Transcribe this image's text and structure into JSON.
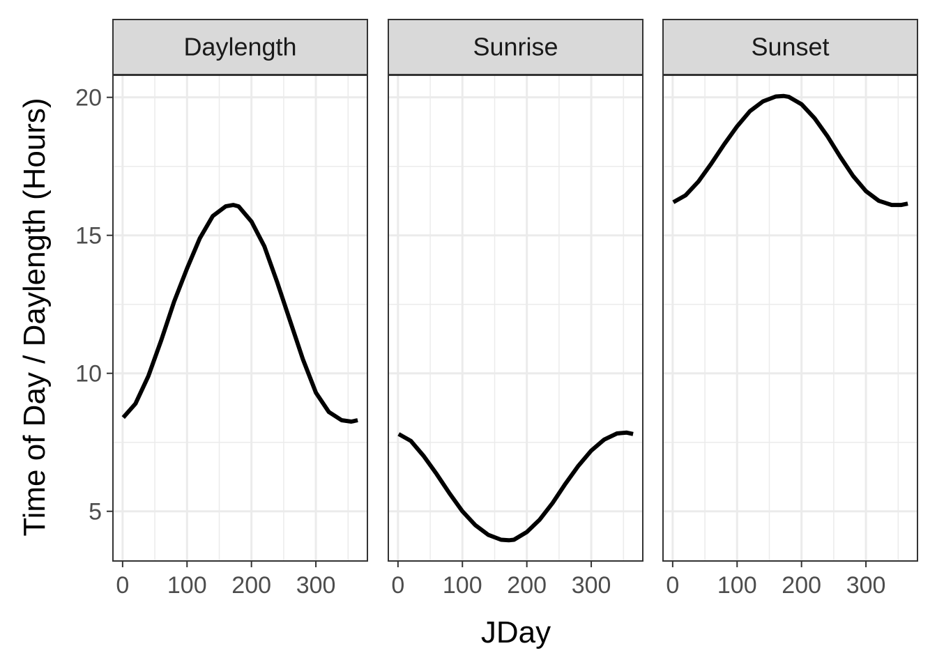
{
  "chart_data": {
    "type": "line",
    "facet_by": "panel",
    "xlabel": "JDay",
    "ylabel": "Time of Day / Daylength (Hours)",
    "xlim": [
      -15,
      380
    ],
    "ylim": [
      3.2,
      20.8
    ],
    "x_ticks": [
      0,
      100,
      200,
      300
    ],
    "y_ticks": [
      5,
      10,
      15,
      20
    ],
    "x_tick_labels": [
      "0",
      "100",
      "200",
      "300"
    ],
    "y_tick_labels": [
      "5",
      "10",
      "15",
      "20"
    ],
    "grid": true,
    "line_color": "#000000",
    "panels": [
      {
        "title": "Daylength",
        "x": [
          1,
          20,
          40,
          60,
          80,
          100,
          120,
          140,
          160,
          172,
          180,
          200,
          220,
          240,
          260,
          280,
          300,
          320,
          340,
          355,
          365
        ],
        "y": [
          8.4,
          8.9,
          9.9,
          11.2,
          12.6,
          13.8,
          14.9,
          15.7,
          16.05,
          16.1,
          16.05,
          15.5,
          14.6,
          13.3,
          11.9,
          10.5,
          9.3,
          8.6,
          8.3,
          8.25,
          8.3
        ]
      },
      {
        "title": "Sunrise",
        "x": [
          1,
          20,
          40,
          60,
          80,
          100,
          120,
          140,
          160,
          172,
          180,
          200,
          220,
          240,
          260,
          280,
          300,
          320,
          340,
          355,
          365
        ],
        "y": [
          7.8,
          7.55,
          7.0,
          6.35,
          5.65,
          5.0,
          4.5,
          4.15,
          3.97,
          3.95,
          3.97,
          4.25,
          4.7,
          5.3,
          6.0,
          6.65,
          7.2,
          7.6,
          7.82,
          7.85,
          7.8
        ]
      },
      {
        "title": "Sunset",
        "x": [
          1,
          20,
          40,
          60,
          80,
          100,
          120,
          140,
          160,
          172,
          180,
          200,
          220,
          240,
          260,
          280,
          300,
          320,
          340,
          355,
          365
        ],
        "y": [
          16.2,
          16.45,
          16.95,
          17.6,
          18.3,
          18.95,
          19.5,
          19.85,
          20.03,
          20.05,
          20.02,
          19.75,
          19.25,
          18.6,
          17.85,
          17.15,
          16.6,
          16.25,
          16.1,
          16.1,
          16.15
        ]
      }
    ]
  }
}
